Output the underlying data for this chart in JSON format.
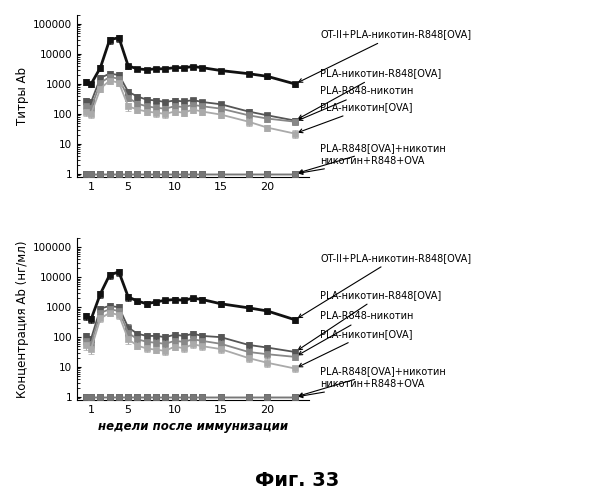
{
  "x_weeks": [
    0.5,
    1,
    2,
    3,
    4,
    5,
    6,
    7,
    8,
    9,
    10,
    11,
    12,
    13,
    15,
    18,
    20,
    23
  ],
  "top_series": {
    "OT_II_PLA": {
      "y": [
        1200,
        1000,
        3500,
        30000,
        35000,
        4000,
        3200,
        3000,
        3200,
        3200,
        3500,
        3500,
        3800,
        3500,
        2800,
        2200,
        1800,
        1000
      ],
      "yerr": [
        300,
        200,
        800,
        8000,
        9000,
        800,
        500,
        400,
        500,
        500,
        600,
        500,
        600,
        500,
        450,
        350,
        280,
        180
      ],
      "color": "#111111",
      "ls": "-",
      "marker": "s",
      "ms": 5,
      "lw": 2.0
    },
    "PLA_nicotine_R848_OVA": {
      "y": [
        280,
        250,
        1600,
        2200,
        2000,
        550,
        380,
        300,
        280,
        250,
        280,
        260,
        290,
        250,
        210,
        120,
        90,
        60
      ],
      "yerr": [
        70,
        60,
        400,
        550,
        500,
        120,
        80,
        60,
        55,
        50,
        55,
        50,
        55,
        50,
        42,
        25,
        18,
        12
      ],
      "color": "#555555",
      "ls": "-",
      "marker": "s",
      "ms": 4,
      "lw": 1.3
    },
    "PLA_R848_nicotine": {
      "y": [
        180,
        160,
        1100,
        1700,
        1500,
        350,
        220,
        180,
        160,
        150,
        180,
        170,
        200,
        180,
        150,
        90,
        70,
        55
      ],
      "yerr": [
        50,
        40,
        280,
        420,
        370,
        90,
        55,
        45,
        40,
        38,
        45,
        42,
        48,
        45,
        38,
        22,
        16,
        13
      ],
      "color": "#888888",
      "ls": "-",
      "marker": "s",
      "ms": 4,
      "lw": 1.3
    },
    "PLA_nicotine_OVA": {
      "y": [
        120,
        100,
        700,
        1300,
        1100,
        180,
        140,
        120,
        110,
        100,
        120,
        110,
        140,
        120,
        95,
        55,
        35,
        22
      ],
      "yerr": [
        35,
        25,
        180,
        320,
        270,
        55,
        35,
        30,
        28,
        25,
        30,
        27,
        35,
        30,
        24,
        14,
        9,
        6
      ],
      "color": "#aaaaaa",
      "ls": "-",
      "marker": "s",
      "ms": 4,
      "lw": 1.3
    },
    "PLA_R848_OVA_nicotine": {
      "y": [
        1,
        1,
        1,
        1,
        1,
        1,
        1,
        1,
        1,
        1,
        1,
        1,
        1,
        1,
        1,
        1,
        1,
        1
      ],
      "yerr": [
        0,
        0,
        0,
        0,
        0,
        0,
        0,
        0,
        0,
        0,
        0,
        0,
        0,
        0,
        0,
        0,
        0,
        0
      ],
      "color": "#222222",
      "ls": "-",
      "marker": "s",
      "ms": 4,
      "lw": 1.0
    },
    "nicotine_R848_OVA": {
      "y": [
        1,
        1,
        1,
        1,
        1,
        1,
        1,
        1,
        1,
        1,
        1,
        1,
        1,
        1,
        1,
        1,
        1,
        1
      ],
      "yerr": [
        0,
        0,
        0,
        0,
        0,
        0,
        0,
        0,
        0,
        0,
        0,
        0,
        0,
        0,
        0,
        0,
        0,
        0
      ],
      "color": "#777777",
      "ls": "-",
      "marker": "s",
      "ms": 4,
      "lw": 1.0
    }
  },
  "bottom_series": {
    "OT_II_PLA": {
      "y": [
        500,
        400,
        2800,
        12000,
        15000,
        2200,
        1600,
        1300,
        1500,
        1700,
        1800,
        1700,
        2000,
        1800,
        1300,
        950,
        750,
        380
      ],
      "yerr": [
        140,
        100,
        700,
        3000,
        4000,
        550,
        320,
        260,
        300,
        340,
        360,
        340,
        400,
        360,
        260,
        190,
        150,
        80
      ],
      "color": "#111111",
      "ls": "-",
      "marker": "s",
      "ms": 5,
      "lw": 2.0
    },
    "PLA_nicotine_R848_OVA": {
      "y": [
        110,
        90,
        900,
        1100,
        1000,
        210,
        130,
        110,
        110,
        100,
        120,
        110,
        130,
        110,
        100,
        55,
        45,
        32
      ],
      "yerr": [
        30,
        22,
        220,
        270,
        250,
        60,
        32,
        27,
        27,
        25,
        30,
        27,
        32,
        27,
        25,
        14,
        11,
        8
      ],
      "color": "#555555",
      "ls": "-",
      "marker": "s",
      "ms": 4,
      "lw": 1.3
    },
    "PLA_R848_nicotine": {
      "y": [
        75,
        60,
        650,
        850,
        750,
        140,
        85,
        70,
        65,
        60,
        75,
        70,
        85,
        75,
        60,
        32,
        27,
        22
      ],
      "yerr": [
        22,
        15,
        160,
        210,
        180,
        42,
        21,
        17,
        16,
        15,
        19,
        17,
        21,
        19,
        15,
        8,
        7,
        5
      ],
      "color": "#888888",
      "ls": "-",
      "marker": "s",
      "ms": 4,
      "lw": 1.3
    },
    "PLA_nicotine_OVA": {
      "y": [
        55,
        40,
        420,
        650,
        550,
        85,
        52,
        42,
        38,
        35,
        48,
        43,
        58,
        50,
        40,
        20,
        14,
        9
      ],
      "yerr": [
        18,
        12,
        105,
        160,
        135,
        26,
        13,
        10,
        9,
        9,
        12,
        11,
        14,
        12,
        10,
        5,
        4,
        2
      ],
      "color": "#aaaaaa",
      "ls": "-",
      "marker": "s",
      "ms": 4,
      "lw": 1.3
    },
    "PLA_R848_OVA_nicotine": {
      "y": [
        1,
        1,
        1,
        1,
        1,
        1,
        1,
        1,
        1,
        1,
        1,
        1,
        1,
        1,
        1,
        1,
        1,
        1
      ],
      "yerr": [
        0,
        0,
        0,
        0,
        0,
        0,
        0,
        0,
        0,
        0,
        0,
        0,
        0,
        0,
        0,
        0,
        0,
        0
      ],
      "color": "#222222",
      "ls": "-",
      "marker": "s",
      "ms": 4,
      "lw": 1.0
    },
    "nicotine_R848_OVA": {
      "y": [
        1,
        1,
        1,
        1,
        1,
        1,
        1,
        1,
        1,
        1,
        1,
        1,
        1,
        1,
        1,
        1,
        1,
        1
      ],
      "yerr": [
        0,
        0,
        0,
        0,
        0,
        0,
        0,
        0,
        0,
        0,
        0,
        0,
        0,
        0,
        0,
        0,
        0,
        0
      ],
      "color": "#777777",
      "ls": "-",
      "marker": "s",
      "ms": 4,
      "lw": 1.0
    }
  },
  "top_ylabel": "Титры Ab",
  "bottom_ylabel": "Концентрация Ab (нг/мл)",
  "xlabel": "недели после иммунизации",
  "fig_label": "Фиг. 33",
  "legend_labels": [
    "OT-II+PLA-никотин-R848[OVA]",
    "PLA-никотин-R848[OVA]",
    "PLA-R848-никотин",
    "PLA-никотин[OVA]",
    "PLA-R848[OVA]+никотин",
    "никотин+R848+OVA"
  ],
  "xticks": [
    1,
    5,
    10,
    15,
    20
  ],
  "ylim": [
    0.8,
    200000
  ],
  "bg_color": "#ffffff"
}
